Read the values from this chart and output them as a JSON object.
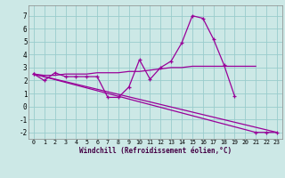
{
  "xlabel": "Windchill (Refroidissement éolien,°C)",
  "background_color": "#cce8e6",
  "grid_color": "#99cccc",
  "line_color": "#990099",
  "xlim": [
    -0.5,
    23.5
  ],
  "ylim": [
    -2.5,
    7.8
  ],
  "yticks": [
    -2,
    -1,
    0,
    1,
    2,
    3,
    4,
    5,
    6,
    7
  ],
  "xticks": [
    0,
    1,
    2,
    3,
    4,
    5,
    6,
    7,
    8,
    9,
    10,
    11,
    12,
    13,
    14,
    15,
    16,
    17,
    18,
    19,
    20,
    21,
    22,
    23
  ],
  "series": [
    {
      "x": [
        0,
        1,
        2,
        3,
        4,
        5,
        6,
        7,
        8,
        9,
        10,
        11,
        12,
        13,
        14,
        15,
        16,
        17,
        18,
        19
      ],
      "y": [
        2.5,
        2.0,
        2.6,
        2.3,
        2.3,
        2.3,
        2.3,
        0.7,
        0.7,
        1.5,
        3.6,
        2.1,
        3.0,
        3.5,
        4.9,
        7.0,
        6.8,
        5.2,
        3.2,
        0.8
      ],
      "has_markers": true
    },
    {
      "x": [
        0,
        1,
        2,
        3,
        4,
        5,
        6,
        7,
        8,
        9,
        10,
        11,
        12,
        13,
        14,
        15,
        16,
        17,
        18,
        19,
        20,
        21
      ],
      "y": [
        2.5,
        2.4,
        2.4,
        2.5,
        2.5,
        2.5,
        2.6,
        2.6,
        2.6,
        2.7,
        2.7,
        2.8,
        2.9,
        3.0,
        3.0,
        3.1,
        3.1,
        3.1,
        3.1,
        3.1,
        3.1,
        3.1
      ],
      "has_markers": false
    },
    {
      "x": [
        0,
        23
      ],
      "y": [
        2.5,
        -2.0
      ],
      "has_markers": false
    },
    {
      "x": [
        0,
        21,
        22,
        23
      ],
      "y": [
        2.5,
        -2.0,
        -2.0,
        -2.0
      ],
      "has_markers": true
    }
  ]
}
